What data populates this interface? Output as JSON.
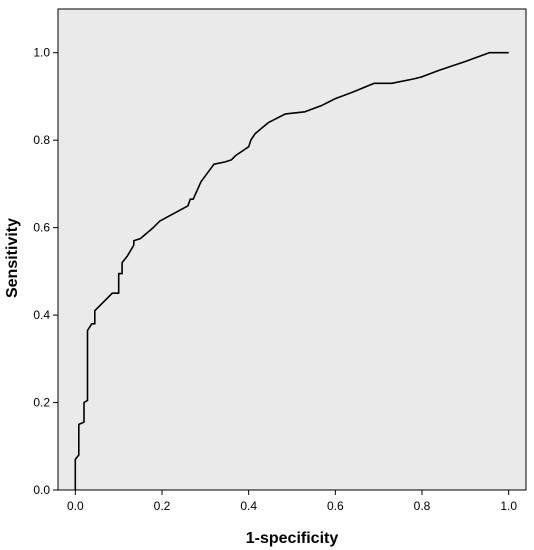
{
  "chart_data": {
    "type": "line",
    "title": "",
    "xlabel": "1-specificity",
    "ylabel": "Sensitivity",
    "xlim": [
      -0.04,
      1.04
    ],
    "ylim": [
      0.0,
      1.1
    ],
    "x_ticks": [
      "0.0",
      "0.2",
      "0.4",
      "0.6",
      "0.8",
      "1.0"
    ],
    "y_ticks": [
      "0.0",
      "0.2",
      "0.4",
      "0.6",
      "0.8",
      "1.0"
    ],
    "grid": false,
    "legend": "none",
    "colors": {
      "plot_background": "#eaeaea",
      "line": "#000000",
      "frame": "#000000"
    },
    "series": [
      {
        "points": [
          [
            0.0,
            0.0
          ],
          [
            0.0,
            0.07
          ],
          [
            0.008,
            0.08
          ],
          [
            0.008,
            0.15
          ],
          [
            0.02,
            0.155
          ],
          [
            0.02,
            0.2
          ],
          [
            0.028,
            0.205
          ],
          [
            0.028,
            0.365
          ],
          [
            0.038,
            0.38
          ],
          [
            0.045,
            0.38
          ],
          [
            0.045,
            0.41
          ],
          [
            0.07,
            0.435
          ],
          [
            0.085,
            0.45
          ],
          [
            0.1,
            0.45
          ],
          [
            0.1,
            0.495
          ],
          [
            0.108,
            0.495
          ],
          [
            0.108,
            0.52
          ],
          [
            0.12,
            0.535
          ],
          [
            0.135,
            0.56
          ],
          [
            0.135,
            0.57
          ],
          [
            0.15,
            0.575
          ],
          [
            0.18,
            0.6
          ],
          [
            0.195,
            0.615
          ],
          [
            0.26,
            0.65
          ],
          [
            0.265,
            0.665
          ],
          [
            0.272,
            0.665
          ],
          [
            0.29,
            0.705
          ],
          [
            0.32,
            0.745
          ],
          [
            0.345,
            0.75
          ],
          [
            0.36,
            0.755
          ],
          [
            0.37,
            0.765
          ],
          [
            0.385,
            0.775
          ],
          [
            0.4,
            0.785
          ],
          [
            0.405,
            0.8
          ],
          [
            0.415,
            0.815
          ],
          [
            0.445,
            0.84
          ],
          [
            0.485,
            0.86
          ],
          [
            0.53,
            0.865
          ],
          [
            0.57,
            0.88
          ],
          [
            0.6,
            0.895
          ],
          [
            0.64,
            0.91
          ],
          [
            0.69,
            0.93
          ],
          [
            0.73,
            0.93
          ],
          [
            0.78,
            0.94
          ],
          [
            0.8,
            0.945
          ],
          [
            0.84,
            0.96
          ],
          [
            0.9,
            0.98
          ],
          [
            0.955,
            1.0
          ],
          [
            1.0,
            1.0
          ]
        ]
      }
    ]
  }
}
